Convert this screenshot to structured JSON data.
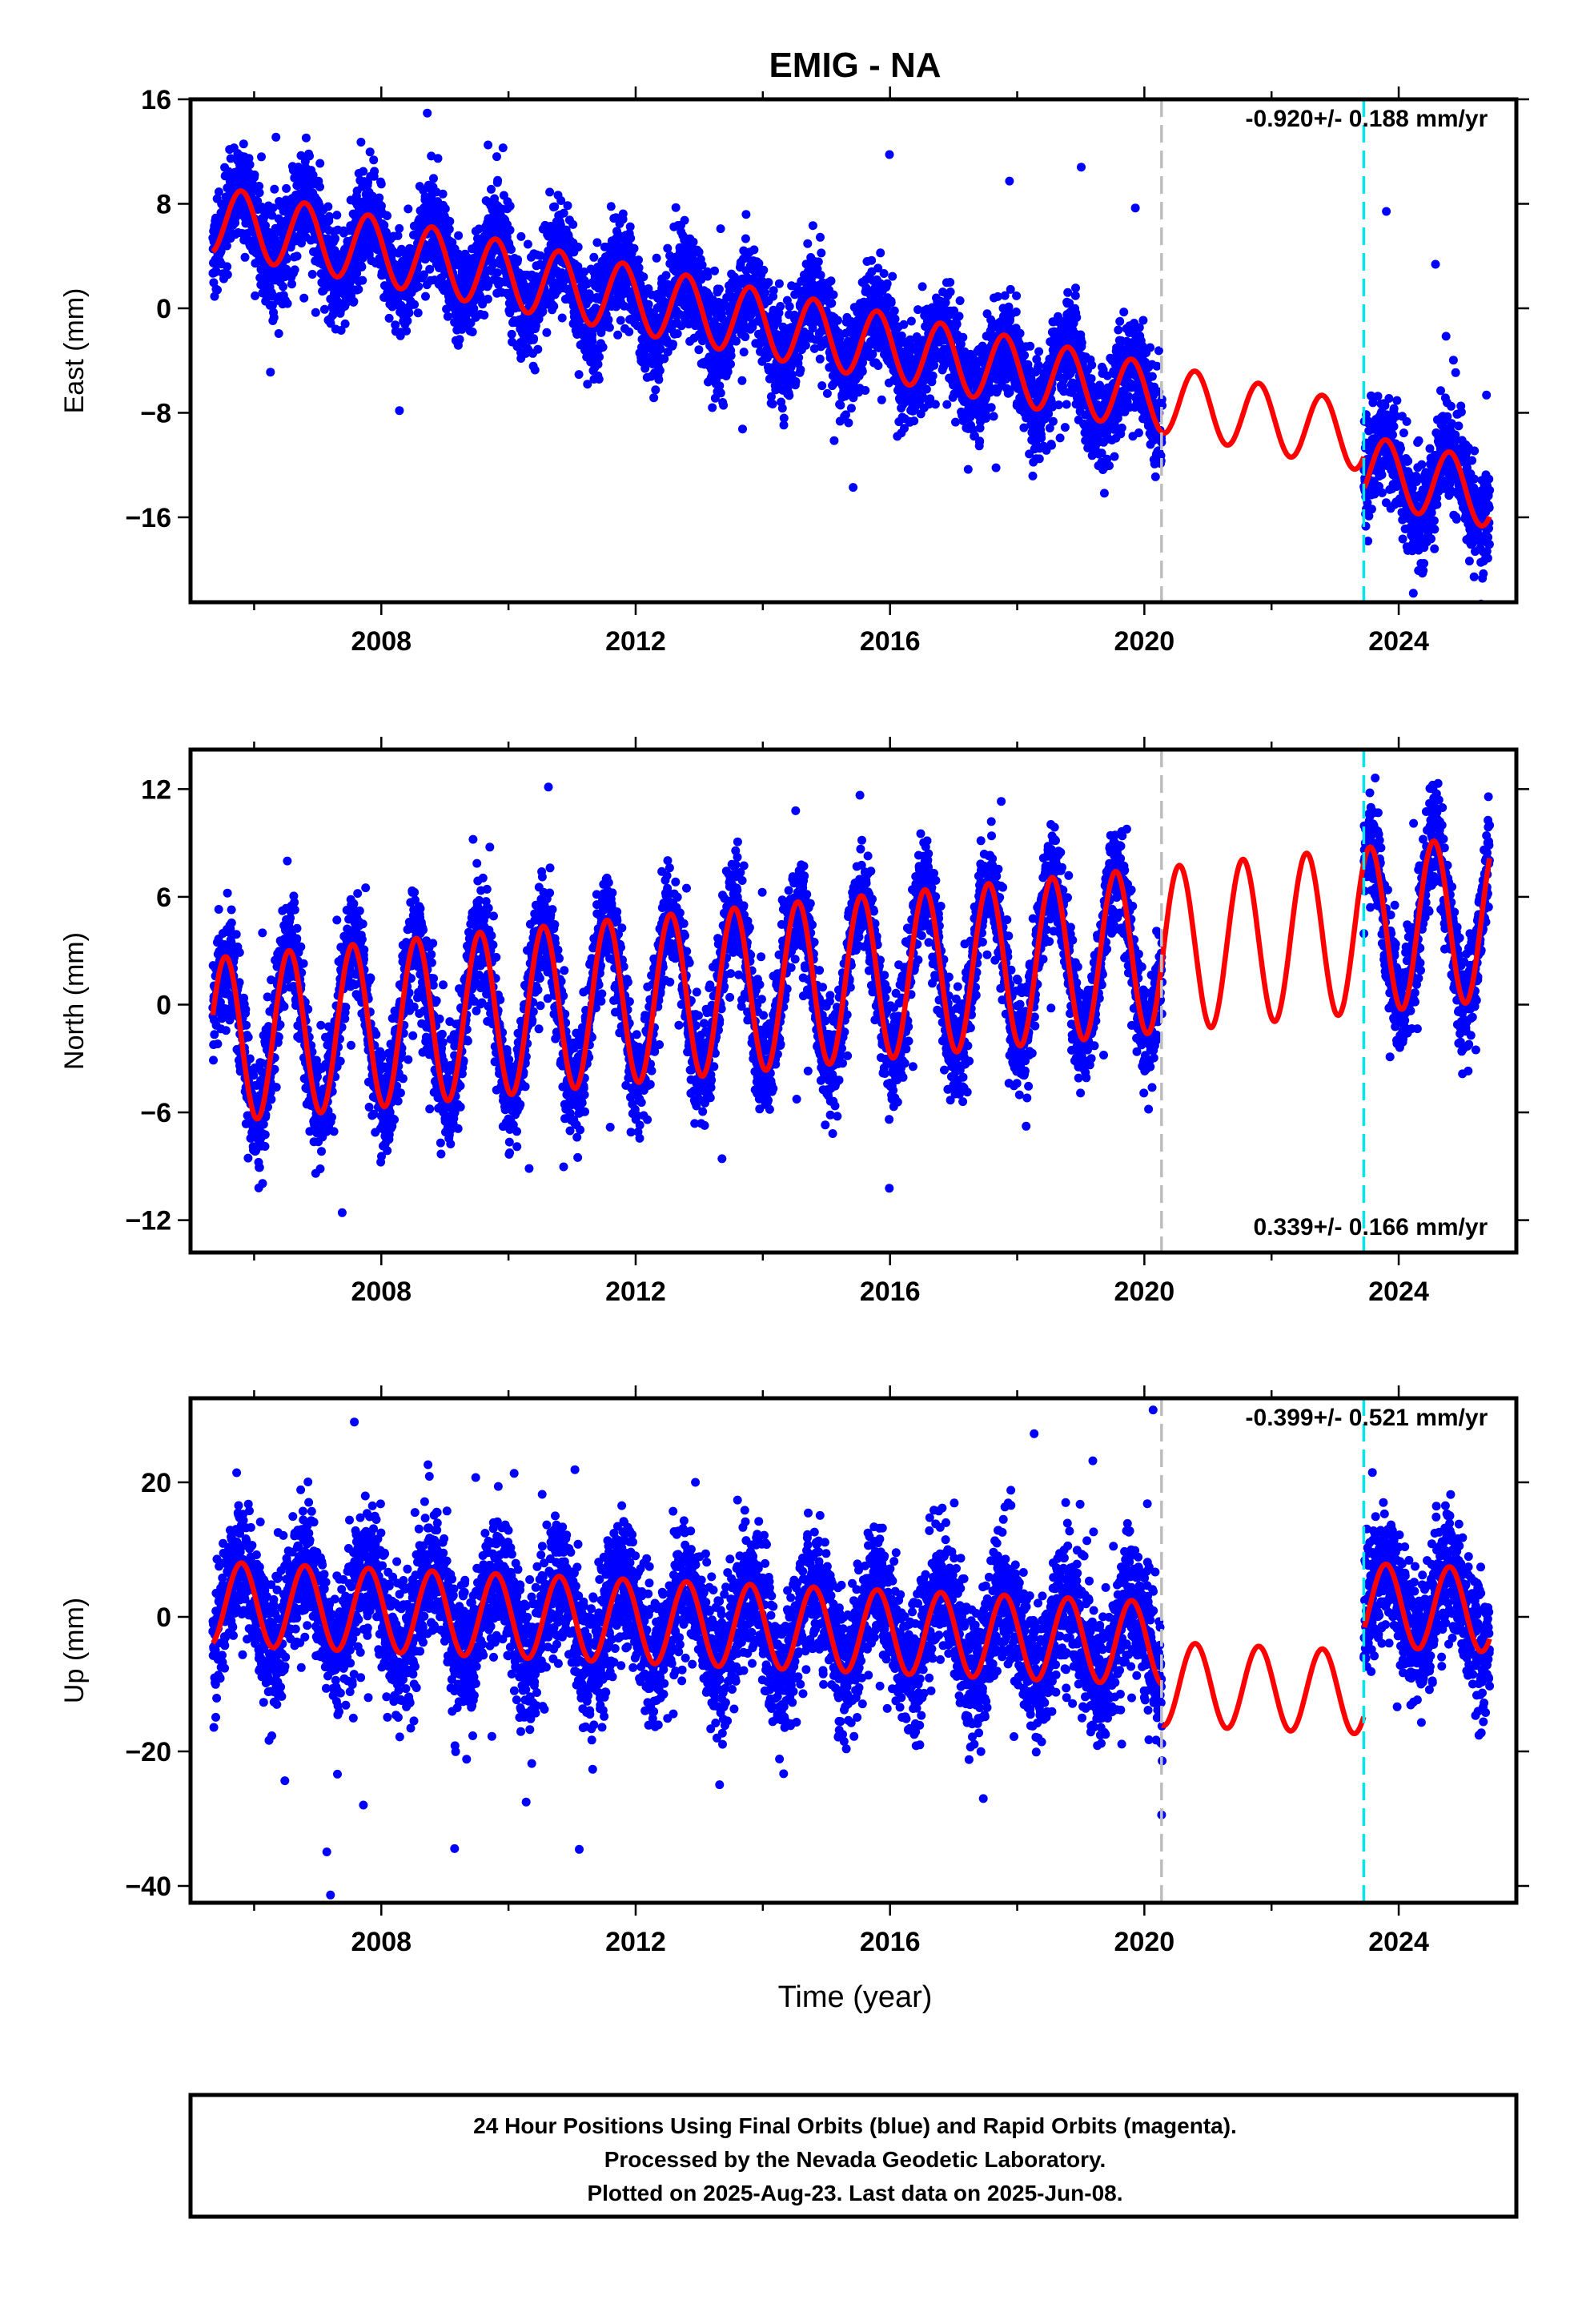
{
  "title": "EMIG - NA",
  "xlabel": "Time (year)",
  "footer": {
    "line1": "24 Hour Positions Using Final Orbits (blue) and Rapid Orbits (magenta).",
    "line2": "Processed by the Nevada Geodetic Laboratory.",
    "line3": "Plotted on 2025-Aug-23. Last data on 2025-Jun-08."
  },
  "colors": {
    "final_orbits": "#0000ff",
    "fit": "#ff0000",
    "event_gray": "#bdbdbd",
    "event_cyan": "#00e5ee"
  },
  "chart_data": [
    {
      "type": "scatter",
      "name": "east",
      "ylabel": "East (mm)",
      "rate_text": "-0.920+/- 0.188 mm/yr",
      "rate_position": "top-right",
      "xlim": [
        2005.0,
        2025.85
      ],
      "ylim": [
        -22.5,
        16
      ],
      "xticks": [
        2008,
        2012,
        2016,
        2020,
        2024
      ],
      "yticks": [
        16,
        8,
        0,
        -8,
        -16
      ],
      "data_start": 2005.35,
      "data_gap": [
        2020.28,
        2023.45
      ],
      "data_end": 2025.43,
      "event_lines": [
        {
          "x": 2020.27,
          "color": "gray"
        },
        {
          "x": 2023.45,
          "color": "cyan"
        }
      ],
      "model": {
        "ref_year": 2005.35,
        "intercept": 6.8,
        "rate": -0.92,
        "annual_amp": 2.6,
        "annual_phase": 2005.55,
        "offsets": [
          {
            "x": 2023.45,
            "dy": -2.5
          }
        ],
        "noise": 1.9,
        "spread": 1.3
      },
      "samples": [
        {
          "x": 2005.4,
          "y": 5.5
        },
        {
          "x": 2006.7,
          "y": 8.5
        },
        {
          "x": 2007.2,
          "y": 3.5
        },
        {
          "x": 2008.0,
          "y": 7.5
        },
        {
          "x": 2010.0,
          "y": 5.5
        },
        {
          "x": 2012.0,
          "y": 3.5
        },
        {
          "x": 2014.0,
          "y": 1.5
        },
        {
          "x": 2016.0,
          "y": -0.5
        },
        {
          "x": 2018.0,
          "y": -3
        },
        {
          "x": 2020.2,
          "y": -8
        },
        {
          "x": 2023.5,
          "y": -13.5
        },
        {
          "x": 2025.35,
          "y": -17
        }
      ]
    },
    {
      "type": "scatter",
      "name": "north",
      "ylabel": "North (mm)",
      "rate_text": "0.339+/- 0.166 mm/yr",
      "rate_position": "bottom-right",
      "xlim": [
        2005.0,
        2025.85
      ],
      "ylim": [
        -13.8,
        14.2
      ],
      "xticks": [
        2008,
        2012,
        2016,
        2020,
        2024
      ],
      "yticks": [
        12,
        6,
        0,
        -6,
        -12
      ],
      "data_start": 2005.35,
      "data_gap": [
        2020.28,
        2023.45
      ],
      "data_end": 2025.43,
      "event_lines": [
        {
          "x": 2020.27,
          "color": "gray"
        },
        {
          "x": 2023.45,
          "color": "cyan"
        }
      ],
      "model": {
        "ref_year": 2005.35,
        "intercept": -2.0,
        "rate": 0.339,
        "annual_amp": 4.6,
        "annual_phase": 2005.3,
        "offsets": [],
        "noise": 1.5,
        "spread": 1.1
      },
      "samples": [
        {
          "x": 2005.5,
          "y": 2
        },
        {
          "x": 2006.9,
          "y": -6
        },
        {
          "x": 2007.6,
          "y": 2.5
        },
        {
          "x": 2010.5,
          "y": 4
        },
        {
          "x": 2014.5,
          "y": 5
        },
        {
          "x": 2018.5,
          "y": 6.5
        },
        {
          "x": 2020.5,
          "y": 9.5
        },
        {
          "x": 2024.5,
          "y": 10
        },
        {
          "x": 2025.4,
          "y": 8.5
        }
      ]
    },
    {
      "type": "scatter",
      "name": "up",
      "ylabel": "Up (mm)",
      "rate_text": "-0.399+/- 0.521 mm/yr",
      "rate_position": "top-right",
      "xlim": [
        2005.0,
        2025.85
      ],
      "ylim": [
        -42.5,
        32.5
      ],
      "xticks": [
        2008,
        2012,
        2016,
        2020,
        2024
      ],
      "yticks": [
        20,
        0,
        -20,
        -40
      ],
      "data_start": 2005.35,
      "data_gap": [
        2020.28,
        2023.45
      ],
      "data_end": 2025.43,
      "event_lines": [
        {
          "x": 2020.27,
          "color": "gray"
        },
        {
          "x": 2023.45,
          "color": "cyan"
        }
      ],
      "model": {
        "ref_year": 2005.35,
        "intercept": 2.0,
        "rate": -0.399,
        "annual_amp": 6.2,
        "annual_phase": 2005.55,
        "offsets": [
          {
            "x": 2020.27,
            "dy": -6
          },
          {
            "x": 2023.45,
            "dy": 13
          }
        ],
        "noise": 5.0,
        "spread": 3.2
      },
      "samples": [
        {
          "x": 2005.4,
          "y": -2
        },
        {
          "x": 2006.7,
          "y": 8.5
        },
        {
          "x": 2008.0,
          "y": 8
        },
        {
          "x": 2012.0,
          "y": 6
        },
        {
          "x": 2016.0,
          "y": 5
        },
        {
          "x": 2020.1,
          "y": 3
        },
        {
          "x": 2021.0,
          "y": -3
        },
        {
          "x": 2023.4,
          "y": -15
        },
        {
          "x": 2024.8,
          "y": 4
        }
      ]
    }
  ]
}
